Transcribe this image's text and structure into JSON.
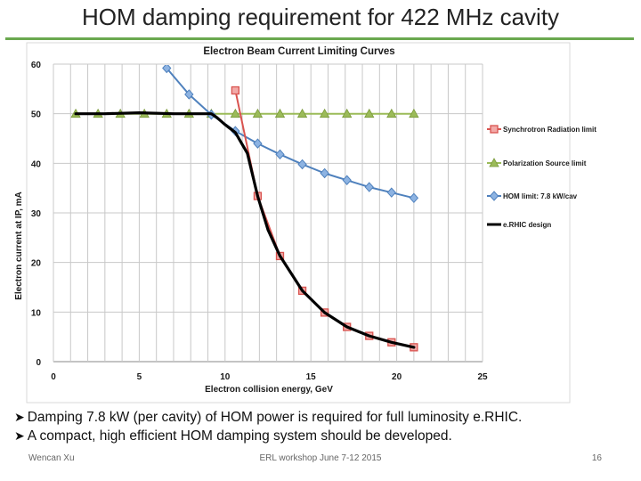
{
  "slide": {
    "title": "HOM damping requirement for 422 MHz cavity",
    "bullets": [
      "Damping 7.8 kW (per cavity) of HOM power is required for full luminosity e.RHIC.",
      "A compact, high efficient HOM damping system should be developed."
    ],
    "footer": {
      "author": "Wencan Xu",
      "event": "ERL workshop June 7-12 2015",
      "page": "16"
    }
  },
  "chart_data": {
    "type": "line",
    "title": "Electron  Beam Current Limiting Curves",
    "xlabel": "Electron collision energy, GeV",
    "ylabel": "Electron current at IP, mA",
    "xlim": [
      0,
      25
    ],
    "ylim": [
      0,
      60
    ],
    "xticks": [
      "0",
      "5",
      "10",
      "15",
      "20",
      "25"
    ],
    "yticks": [
      "0",
      "10",
      "20",
      "30",
      "40",
      "50",
      "60"
    ],
    "grid": true,
    "legend_position": "right",
    "series": [
      {
        "name": "Synchrotron Radiation  limit",
        "color": "#d9534f",
        "marker": "square",
        "x": [
          10.6,
          11.9,
          13.2,
          14.5,
          15.8,
          17.1,
          18.4,
          19.7,
          21.0
        ],
        "y": [
          54.7,
          33.4,
          21.3,
          14.3,
          9.9,
          7.0,
          5.2,
          3.9,
          2.9
        ]
      },
      {
        "name": "Polarization Source limit",
        "color": "#9bbb59",
        "marker": "triangle",
        "x": [
          1.3,
          2.6,
          3.9,
          5.3,
          6.6,
          7.9,
          9.2,
          10.6,
          11.9,
          13.2,
          14.5,
          15.8,
          17.1,
          18.4,
          19.7,
          21.0
        ],
        "y": [
          50,
          50,
          50,
          50,
          50,
          50,
          50,
          50,
          50,
          50,
          50,
          50,
          50,
          50,
          50,
          50
        ]
      },
      {
        "name": "HOM limit: 7.8 kW/cav",
        "color": "#4f81bd",
        "marker": "diamond",
        "x": [
          6.6,
          7.9,
          9.2,
          10.6,
          11.9,
          13.2,
          14.5,
          15.8,
          17.1,
          18.4,
          19.7,
          21.0
        ],
        "y": [
          59.2,
          53.9,
          49.8,
          46.5,
          44.0,
          41.8,
          39.8,
          38.0,
          36.6,
          35.2,
          34.1,
          33.0
        ]
      },
      {
        "name": "e.RHIC design",
        "color": "#000000",
        "marker": "none",
        "x": [
          1.3,
          3.0,
          5.0,
          7.0,
          9.2,
          9.5,
          10.0,
          10.6,
          11.3,
          11.9,
          12.5,
          13.2,
          14.5,
          15.8,
          17.1,
          18.4,
          19.7,
          21.0
        ],
        "y": [
          50,
          50,
          50.2,
          50,
          50,
          49.3,
          47.8,
          46.2,
          42.0,
          33.4,
          26.6,
          21.3,
          14.3,
          9.9,
          7.0,
          5.2,
          3.9,
          2.9
        ]
      }
    ]
  }
}
